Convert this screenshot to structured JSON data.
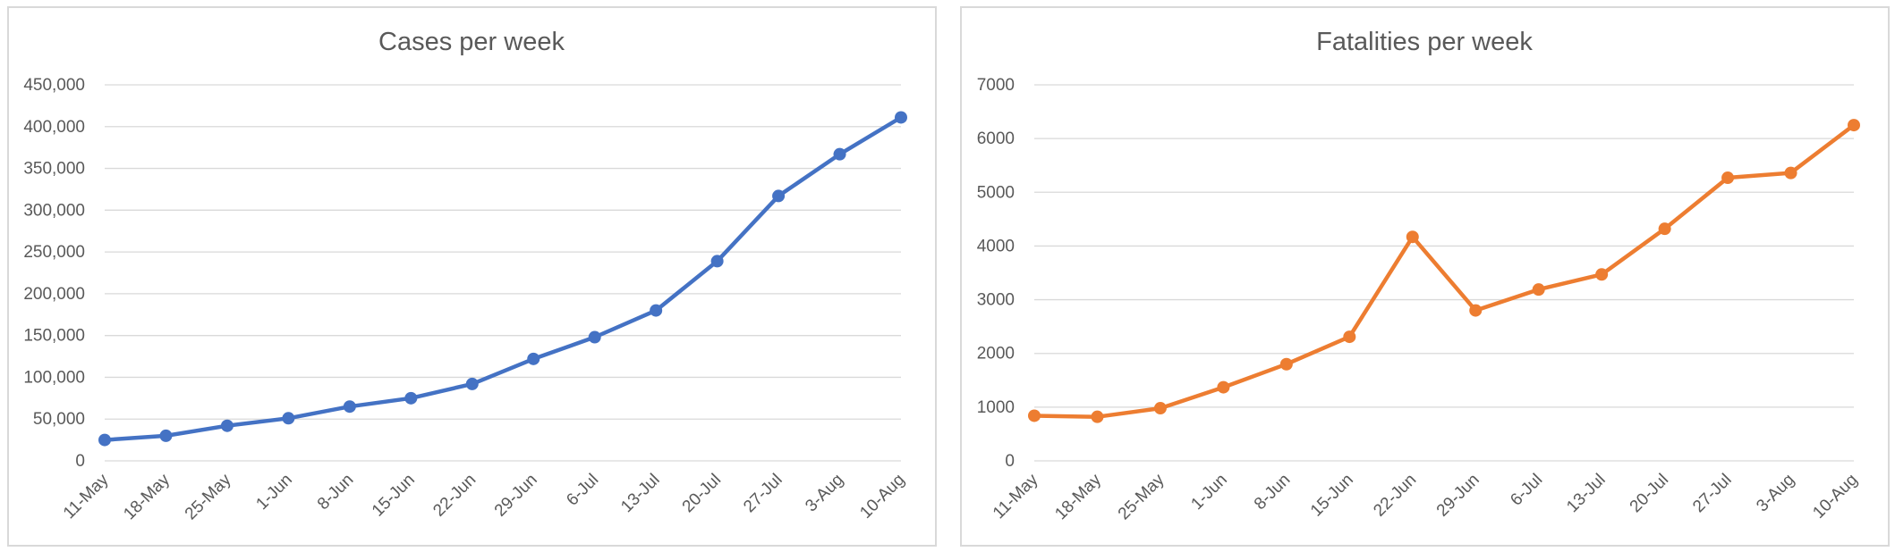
{
  "colors": {
    "cases": "#4472c4",
    "fatalities": "#ed7d31"
  },
  "chart_data": [
    {
      "type": "line",
      "title": "Cases per week",
      "categories": [
        "11-May",
        "18-May",
        "25-May",
        "1-Jun",
        "8-Jun",
        "15-Jun",
        "22-Jun",
        "29-Jun",
        "6-Jul",
        "13-Jul",
        "20-Jul",
        "27-Jul",
        "3-Aug",
        "10-Aug"
      ],
      "values": [
        25000,
        30000,
        42000,
        51000,
        65000,
        75000,
        92000,
        122000,
        148000,
        180000,
        239000,
        317000,
        367000,
        411000
      ],
      "yticks": [
        "0",
        "50,000",
        "100,000",
        "150,000",
        "200,000",
        "250,000",
        "300,000",
        "350,000",
        "400,000",
        "450,000"
      ],
      "ylim": [
        0,
        450000
      ],
      "grid": true,
      "legend": "none"
    },
    {
      "type": "line",
      "title": "Fatalities per week",
      "categories": [
        "11-May",
        "18-May",
        "25-May",
        "1-Jun",
        "8-Jun",
        "15-Jun",
        "22-Jun",
        "29-Jun",
        "6-Jul",
        "13-Jul",
        "20-Jul",
        "27-Jul",
        "3-Aug",
        "10-Aug"
      ],
      "values": [
        840,
        820,
        980,
        1370,
        1800,
        2310,
        4170,
        2800,
        3190,
        3470,
        4320,
        5270,
        5360,
        6250
      ],
      "yticks": [
        "0",
        "1000",
        "2000",
        "3000",
        "4000",
        "5000",
        "6000",
        "7000"
      ],
      "ylim": [
        0,
        7000
      ],
      "grid": true,
      "legend": "none"
    }
  ]
}
